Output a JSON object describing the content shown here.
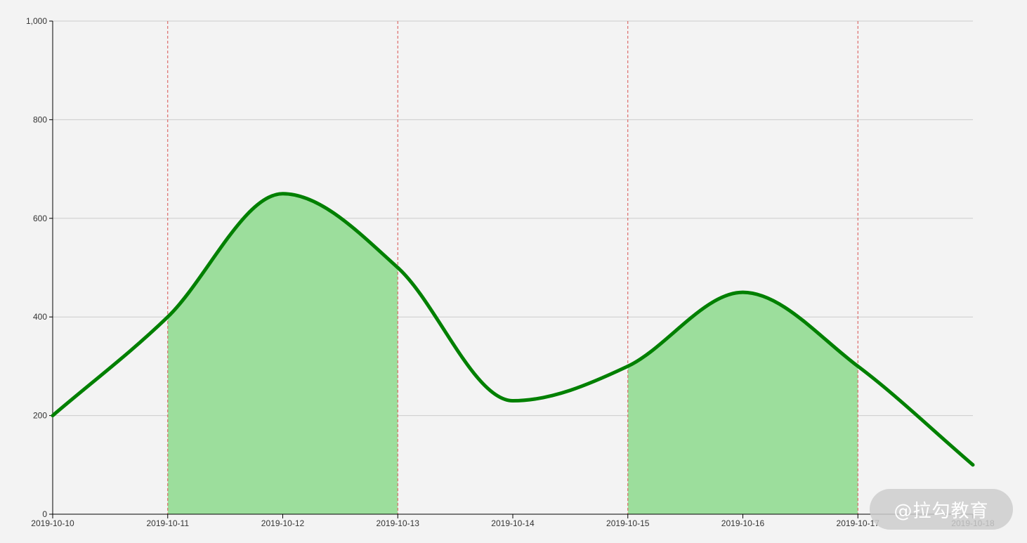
{
  "chart_data": {
    "type": "line",
    "x": [
      "2019-10-10",
      "2019-10-11",
      "2019-10-12",
      "2019-10-13",
      "2019-10-14",
      "2019-10-15",
      "2019-10-16",
      "2019-10-17",
      "2019-10-18"
    ],
    "series": [
      {
        "values": [
          200,
          400,
          650,
          500,
          230,
          300,
          450,
          300,
          100
        ],
        "color": "#008000",
        "curve": "smooth"
      }
    ],
    "yticks": [
      "0",
      "200",
      "400",
      "600",
      "800",
      "1,000"
    ],
    "ylim": [
      0,
      1000
    ],
    "grid": "horizontal",
    "highlight_ranges": [
      {
        "from": "2019-10-11",
        "to": "2019-10-13"
      },
      {
        "from": "2019-10-15",
        "to": "2019-10-17"
      }
    ],
    "reference_lines": [
      "2019-10-11",
      "2019-10-13",
      "2019-10-15",
      "2019-10-17"
    ],
    "colors": {
      "line": "#008000",
      "area_fill": "#9cde9c",
      "reference_line": "#d9534f",
      "grid": "#cccccc",
      "axis": "#000000",
      "background": "#f3f3f3"
    }
  },
  "watermark": {
    "text": "@拉勾教育"
  }
}
